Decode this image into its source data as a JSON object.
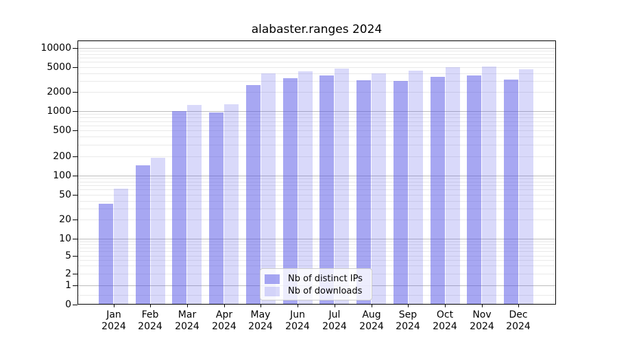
{
  "chart_data": {
    "type": "bar",
    "title": "alabaster.ranges 2024",
    "categories": [
      {
        "month": "Jan",
        "year": "2024"
      },
      {
        "month": "Feb",
        "year": "2024"
      },
      {
        "month": "Mar",
        "year": "2024"
      },
      {
        "month": "Apr",
        "year": "2024"
      },
      {
        "month": "May",
        "year": "2024"
      },
      {
        "month": "Jun",
        "year": "2024"
      },
      {
        "month": "Jul",
        "year": "2024"
      },
      {
        "month": "Aug",
        "year": "2024"
      },
      {
        "month": "Sep",
        "year": "2024"
      },
      {
        "month": "Oct",
        "year": "2024"
      },
      {
        "month": "Nov",
        "year": "2024"
      },
      {
        "month": "Dec",
        "year": "2024"
      }
    ],
    "series": [
      {
        "name": "Nb of distinct IPs",
        "color": "rgba(80,80,230,0.5)",
        "values": [
          36,
          145,
          1000,
          950,
          2600,
          3300,
          3650,
          3050,
          3000,
          3500,
          3700,
          3200
        ]
      },
      {
        "name": "Nb of downloads",
        "color": "rgba(80,80,230,0.22)",
        "values": [
          62,
          190,
          1250,
          1280,
          3950,
          4300,
          4750,
          4000,
          4400,
          4950,
          5100,
          4650
        ]
      }
    ],
    "yscale": "symlog",
    "yticks": [
      0,
      1,
      2,
      5,
      10,
      20,
      50,
      100,
      200,
      500,
      1000,
      2000,
      5000,
      10000
    ],
    "ylim": [
      0,
      13000
    ],
    "grid": true,
    "legend_position": "lower-center"
  },
  "colors": {
    "major_grid": "#bdbdbd",
    "minor_grid": "#e9e9e9",
    "axis": "#000000",
    "legend_border": "#cccccc",
    "background": "#ffffff"
  }
}
